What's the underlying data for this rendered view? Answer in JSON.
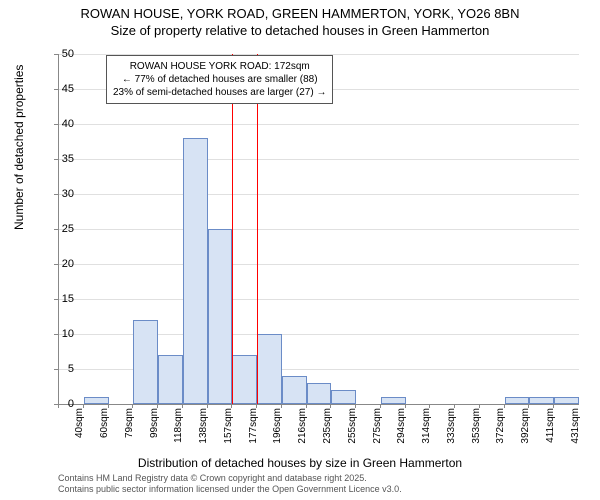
{
  "title": {
    "line1": "ROWAN HOUSE, YORK ROAD, GREEN HAMMERTON, YORK, YO26 8BN",
    "line2": "Size of property relative to detached houses in Green Hammerton"
  },
  "axes": {
    "ylabel": "Number of detached properties",
    "xlabel": "Distribution of detached houses by size in Green Hammerton",
    "ymax": 50,
    "ytick_step": 5,
    "yticks": [
      0,
      5,
      10,
      15,
      20,
      25,
      30,
      35,
      40,
      45,
      50
    ],
    "xtick_labels": [
      "40sqm",
      "60sqm",
      "79sqm",
      "99sqm",
      "118sqm",
      "138sqm",
      "157sqm",
      "177sqm",
      "196sqm",
      "216sqm",
      "235sqm",
      "255sqm",
      "275sqm",
      "294sqm",
      "314sqm",
      "333sqm",
      "353sqm",
      "372sqm",
      "392sqm",
      "411sqm",
      "431sqm"
    ]
  },
  "chart": {
    "type": "histogram",
    "bar_values": [
      0,
      1,
      0,
      12,
      7,
      38,
      25,
      7,
      10,
      4,
      3,
      2,
      0,
      1,
      0,
      0,
      0,
      0,
      1,
      1,
      1
    ],
    "bar_fill": "#d7e3f4",
    "bar_border": "#6b8cc7",
    "grid_color": "#e0e0e0",
    "background_color": "#ffffff",
    "marker_line_color": "#ff0000",
    "marker_bar_index": 7
  },
  "annotation": {
    "line1": "ROWAN HOUSE YORK ROAD: 172sqm",
    "line2": "← 77% of detached houses are smaller (88)",
    "line3": "23% of semi-detached houses are larger (27) →"
  },
  "footer": {
    "line1": "Contains HM Land Registry data © Crown copyright and database right 2025.",
    "line2": "Contains public sector information licensed under the Open Government Licence v3.0."
  }
}
